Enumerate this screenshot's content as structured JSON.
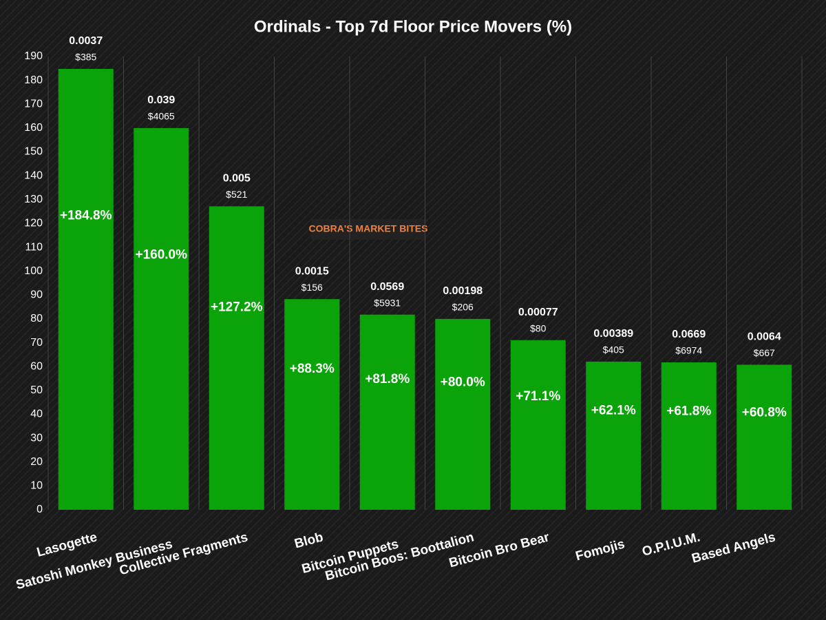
{
  "chart_data": {
    "type": "bar",
    "title": "Ordinals - Top 7d Floor Price Movers (%)",
    "categories": [
      "Lasogette",
      "Satoshi Monkey Business",
      "Collective Fragments",
      "Blob",
      "Bitcoin Puppets",
      "Bitcoin Boos: Boottalion",
      "Bitcoin Bro Bear",
      "Fomojis",
      "O.P.I.U.M.",
      "Based Angels"
    ],
    "values": [
      184.8,
      160.0,
      127.2,
      88.3,
      81.8,
      80.0,
      71.1,
      62.1,
      61.8,
      60.8
    ],
    "value_labels": [
      "+184.8%",
      "+160.0%",
      "+127.2%",
      "+88.3%",
      "+81.8%",
      "+80.0%",
      "+71.1%",
      "+62.1%",
      "+61.8%",
      "+60.8%"
    ],
    "floor_btc": [
      0.0037,
      0.039,
      0.005,
      0.0015,
      0.0569,
      0.00198,
      0.00077,
      0.00389,
      0.0669,
      0.0064
    ],
    "floor_usd": [
      385,
      4065,
      521,
      156,
      5931,
      206,
      80,
      405,
      6974,
      667
    ],
    "floor_usd_labels": [
      "$385",
      "$4065",
      "$521",
      "$156",
      "$5931",
      "$206",
      "$80",
      "$405",
      "$6974",
      "$667"
    ],
    "color": "#0aa30a",
    "ylim": [
      0,
      190
    ],
    "yticks": [
      0,
      10,
      20,
      30,
      40,
      50,
      60,
      70,
      80,
      90,
      100,
      110,
      120,
      130,
      140,
      150,
      160,
      170,
      180,
      190
    ],
    "grid": true,
    "watermark": "COBRA'S MARKET BITES"
  }
}
